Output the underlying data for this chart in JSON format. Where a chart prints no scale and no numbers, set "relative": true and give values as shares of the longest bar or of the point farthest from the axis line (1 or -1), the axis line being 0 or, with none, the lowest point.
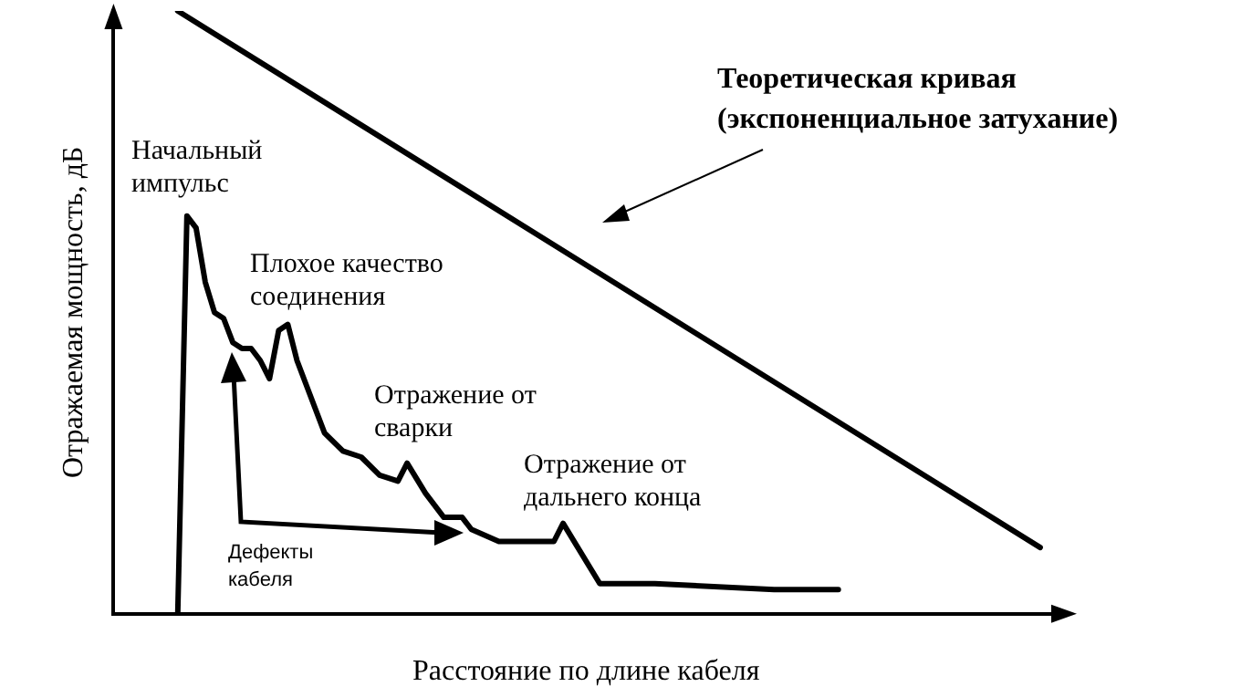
{
  "chart_data": {
    "type": "line",
    "relative": true,
    "xlabel": "Расстояние по длине кабеля",
    "ylabel": "Отражаемая мощность, дБ",
    "grid": false,
    "legend": false,
    "marker": "none",
    "line_style": "solid",
    "categories": [
      null,
      null,
      null,
      null,
      null,
      null,
      null,
      null,
      null,
      null,
      null,
      null,
      null,
      null,
      null,
      null,
      null,
      null,
      null,
      null,
      null,
      null,
      null,
      null,
      null,
      null,
      null,
      null,
      null,
      null,
      null,
      null,
      null,
      null,
      null,
      null,
      null,
      null,
      null,
      null,
      null,
      null,
      null,
      null,
      null,
      null,
      null,
      null,
      null,
      null,
      null,
      null,
      null,
      null,
      null,
      null,
      null,
      null,
      null,
      null,
      null,
      null,
      null,
      null,
      null,
      null,
      null,
      null,
      null,
      null,
      null,
      null,
      null,
      null,
      null,
      null,
      null,
      null,
      null,
      null,
      null,
      null,
      null,
      null,
      null,
      null,
      null,
      null,
      null,
      null,
      null,
      null,
      null,
      null,
      null,
      null,
      null,
      null,
      null,
      null,
      null,
      null,
      null,
      null
    ],
    "series": [
      {
        "name": "Теоретическая кривая (экспоненциальное затухание)",
        "color": "#000000",
        "values": [
          null,
          null,
          null,
          null,
          null,
          null,
          null,
          1.0,
          null,
          null,
          null,
          null,
          null,
          null,
          null,
          null,
          null,
          null,
          null,
          null,
          null,
          null,
          null,
          null,
          null,
          null,
          null,
          null,
          null,
          null,
          null,
          null,
          null,
          null,
          null,
          null,
          null,
          null,
          null,
          null,
          null,
          null,
          null,
          null,
          null,
          null,
          null,
          null,
          null,
          null,
          null,
          null,
          null,
          null,
          null,
          null,
          null,
          null,
          null,
          null,
          null,
          null,
          null,
          null,
          null,
          null,
          null,
          null,
          null,
          null,
          null,
          null,
          null,
          null,
          null,
          null,
          null,
          null,
          null,
          null,
          null,
          null,
          null,
          null,
          null,
          null,
          null,
          null,
          null,
          null,
          null,
          null,
          null,
          null,
          null,
          null,
          null,
          null,
          null,
          null,
          null,
          0.11,
          null,
          null
        ]
      },
      {
        "color": "#000000",
        "values": [
          null,
          null,
          null,
          null,
          null,
          null,
          null,
          0,
          0.66,
          0.64,
          0.55,
          0.5,
          0.49,
          0.45,
          0.44,
          0.44,
          0.42,
          0.39,
          0.47,
          0.48,
          0.42,
          0.38,
          null,
          0.3,
          null,
          0.27,
          null,
          0.26,
          null,
          0.23,
          null,
          0.22,
          0.25,
          null,
          0.2,
          null,
          0.16,
          null,
          0.16,
          0.14,
          null,
          null,
          0.12,
          null,
          null,
          null,
          0.12,
          null,
          0.12,
          0.15,
          null,
          null,
          null,
          0.05,
          null,
          null,
          null,
          null,
          null,
          0.05,
          null,
          null,
          null,
          null,
          null,
          null,
          null,
          null,
          null,
          null,
          null,
          null,
          0.04,
          null,
          null,
          null,
          null,
          null,
          null,
          0.04,
          null,
          null,
          null,
          null,
          null,
          null,
          null,
          null,
          null,
          null,
          null,
          null,
          null,
          null,
          null,
          null,
          null,
          null,
          null,
          null,
          null,
          null,
          null,
          null
        ]
      }
    ],
    "annotations": [
      "Начальный импульс",
      "Плохое качество соединения",
      "Отражение от сварки",
      "Отражение от дальнего конца",
      "Дефекты кабеля"
    ]
  }
}
